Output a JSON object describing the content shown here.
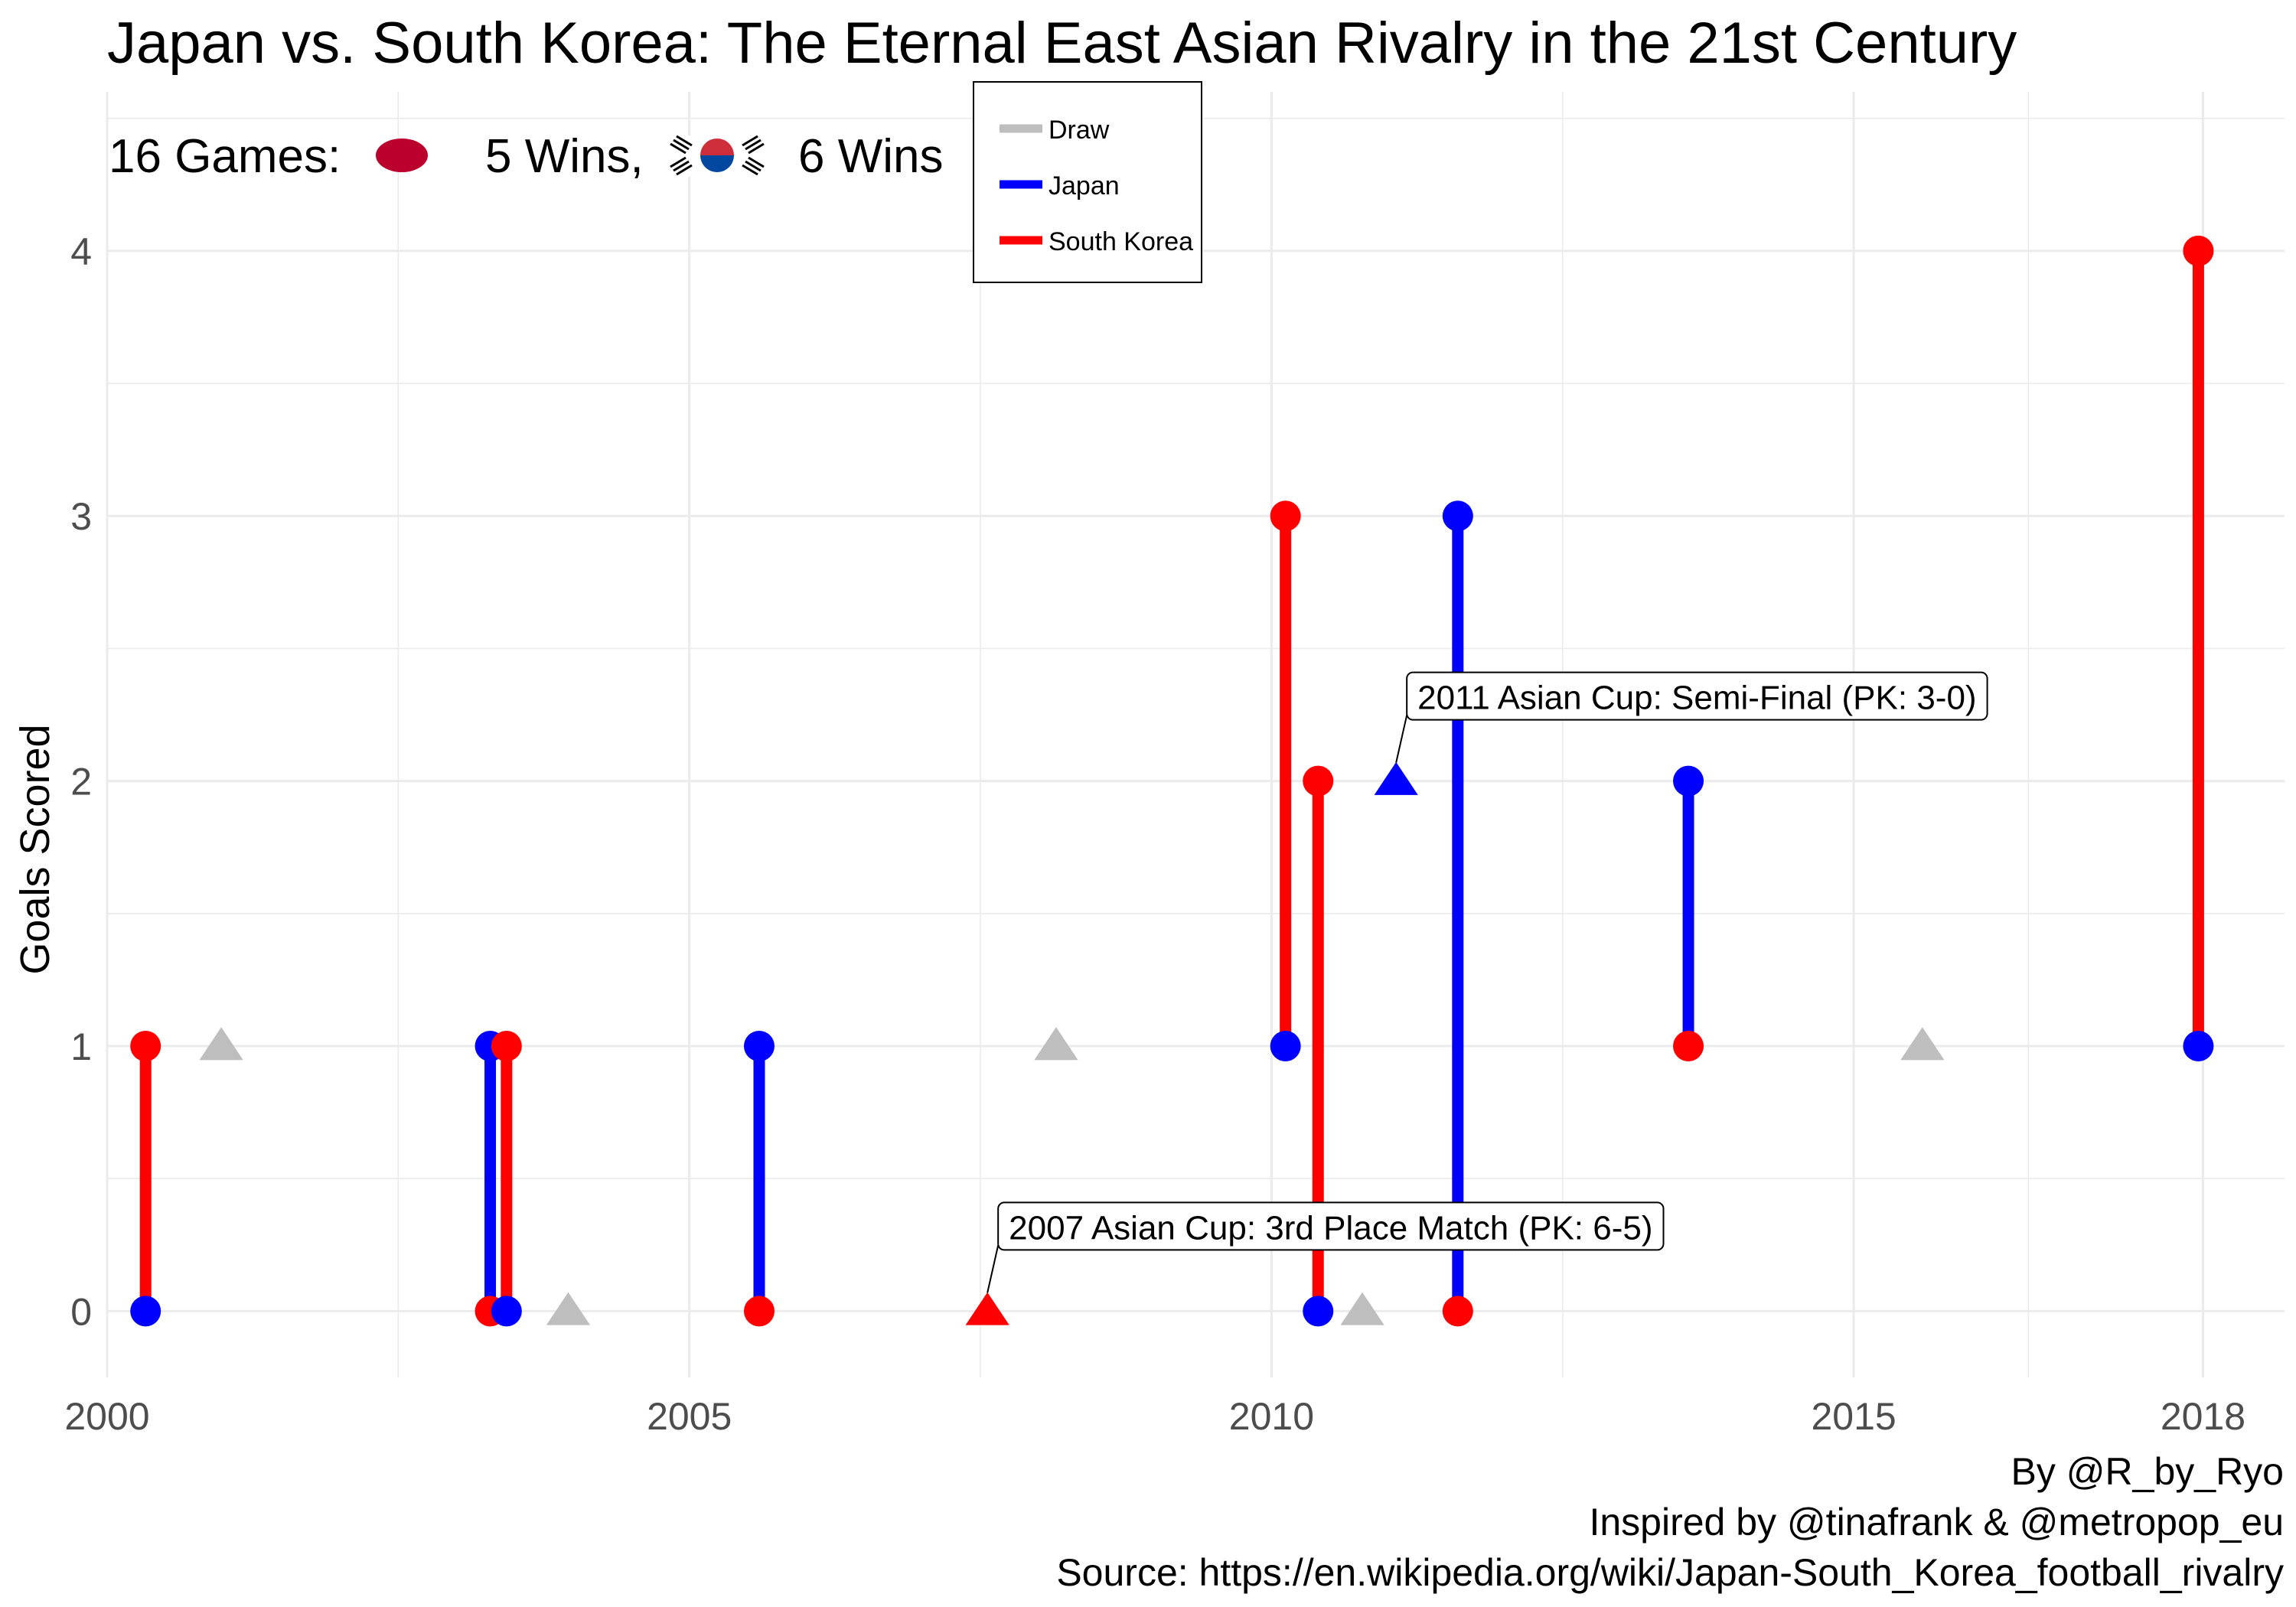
{
  "title": "Japan vs. South Korea: The Eternal East Asian Rivalry in the 21st Century",
  "summary": {
    "games_label": "16 Games:",
    "japan_wins_label": "5 Wins,",
    "korea_wins_label": "6 Wins"
  },
  "legend": {
    "position": "top",
    "entries": [
      {
        "label": "Draw",
        "color": "#bebebe"
      },
      {
        "label": "Japan",
        "color": "#0000ff"
      },
      {
        "label": "South Korea",
        "color": "#ff0000"
      }
    ]
  },
  "caption": [
    "By @R_by_Ryo",
    "Inspired by @tinafrank & @metropop_eu",
    "Source: https://en.wikipedia.org/wiki/Japan-South_Korea_football_rivalry"
  ],
  "colors": {
    "japan": "#0000ff",
    "korea": "#ff0000",
    "draw": "#bebebe",
    "grid": "#ebebeb",
    "japan_flag": "#bc002d",
    "korea_flag_red": "#cd2e3a",
    "korea_flag_blue": "#0047a0"
  },
  "chart_data": {
    "type": "scatter",
    "title": "Japan vs. South Korea: The Eternal East Asian Rivalry in the 21st Century",
    "xlabel": "",
    "ylabel": "Goals Scored",
    "xlim": [
      2000,
      2018.7
    ],
    "ylim": [
      -0.25,
      4.6
    ],
    "x_ticks": [
      2000,
      2005,
      2010,
      2015,
      2018
    ],
    "y_ticks": [
      0,
      1,
      2,
      3,
      4
    ],
    "grid": true,
    "matches": [
      {
        "date": 2000.33,
        "japan": 0,
        "korea": 1,
        "winner": "South Korea"
      },
      {
        "date": 2000.98,
        "japan": 1,
        "korea": 1,
        "winner": "Draw"
      },
      {
        "date": 2003.29,
        "japan": 1,
        "korea": 0,
        "winner": "Japan"
      },
      {
        "date": 2003.43,
        "japan": 0,
        "korea": 1,
        "winner": "South Korea"
      },
      {
        "date": 2003.96,
        "japan": 0,
        "korea": 0,
        "winner": "Draw"
      },
      {
        "date": 2005.6,
        "japan": 1,
        "korea": 0,
        "winner": "Japan"
      },
      {
        "date": 2007.56,
        "japan": 0,
        "korea": 0,
        "winner": "Draw",
        "pk_winner": "South Korea",
        "annotation": "2007 Asian Cup: 3rd Place Match (PK: 6-5)"
      },
      {
        "date": 2008.15,
        "japan": 1,
        "korea": 1,
        "winner": "Draw"
      },
      {
        "date": 2010.12,
        "japan": 1,
        "korea": 3,
        "winner": "South Korea"
      },
      {
        "date": 2010.4,
        "japan": 0,
        "korea": 2,
        "winner": "South Korea"
      },
      {
        "date": 2010.78,
        "japan": 0,
        "korea": 0,
        "winner": "Draw"
      },
      {
        "date": 2011.07,
        "japan": 2,
        "korea": 2,
        "winner": "Draw",
        "pk_winner": "Japan",
        "annotation": "2011 Asian Cup: Semi-Final (PK: 3-0)"
      },
      {
        "date": 2011.6,
        "japan": 3,
        "korea": 0,
        "winner": "Japan"
      },
      {
        "date": 2013.58,
        "japan": 2,
        "korea": 1,
        "winner": "Japan"
      },
      {
        "date": 2015.59,
        "japan": 1,
        "korea": 1,
        "winner": "Draw"
      },
      {
        "date": 2017.96,
        "japan": 1,
        "korea": 4,
        "winner": "South Korea"
      }
    ]
  }
}
